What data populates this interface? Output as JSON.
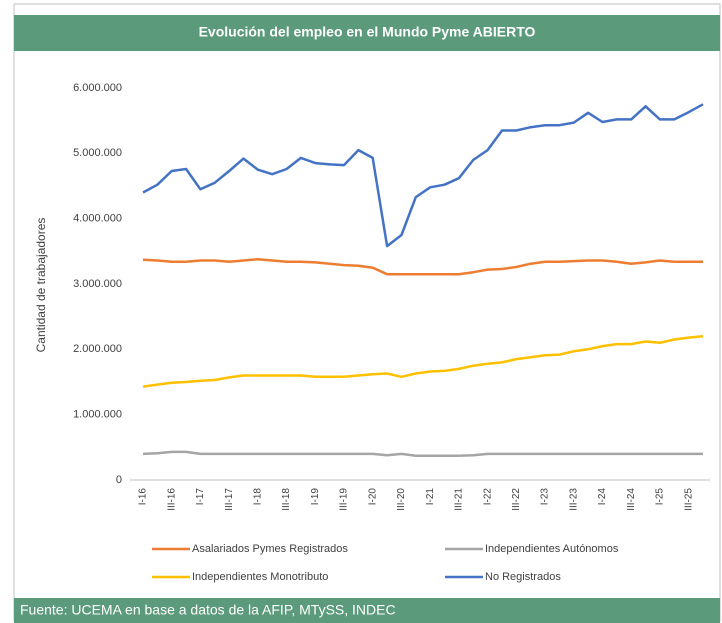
{
  "chart_data": {
    "type": "line",
    "title": "Evolución del empleo en el Mundo Pyme ABIERTO",
    "y_label": "Cantidad de trabajadores",
    "source": "Fuente: UCEMA en base a datos de la AFIP, MTySS, INDEC",
    "categories": [
      "I-16",
      null,
      "III-16",
      null,
      "I-17",
      null,
      "III-17",
      null,
      "I-18",
      null,
      "III-18",
      null,
      "I-19",
      null,
      "III-19",
      null,
      "I-20",
      null,
      "III-20",
      null,
      "I-21",
      null,
      "III-21",
      null,
      "I-22",
      null,
      "III-22",
      null,
      "I-23",
      null,
      "III-23",
      null,
      "I-24",
      null,
      "III-24",
      null,
      "I-25",
      null,
      "III-25",
      null
    ],
    "ylim": [
      0,
      6000000
    ],
    "yticks": [
      0,
      {
        "value": 1000000,
        "label": "1.000.000"
      },
      {
        "value": 2000000,
        "label": "2.000.000"
      },
      {
        "value": 3000000,
        "label": "3.000.000"
      },
      {
        "value": 4000000,
        "label": "4.000.000"
      },
      {
        "value": 5000000,
        "label": "5.000.000"
      },
      {
        "value": 6000000,
        "label": "6.000.000"
      }
    ],
    "grid": false,
    "series": [
      {
        "name": "Asalariados Pymes Registrados",
        "color": "#ed7d31",
        "values": [
          3370000,
          3360000,
          3340000,
          3340000,
          3360000,
          3360000,
          3340000,
          3360000,
          3380000,
          3360000,
          3340000,
          3340000,
          3330000,
          3310000,
          3290000,
          3280000,
          3250000,
          3150000,
          3150000,
          3150000,
          3150000,
          3150000,
          3150000,
          3180000,
          3220000,
          3230000,
          3260000,
          3310000,
          3340000,
          3340000,
          3350000,
          3360000,
          3360000,
          3340000,
          3310000,
          3330000,
          3360000,
          3340000,
          3340000,
          3340000
        ]
      },
      {
        "name": "Independientes Autónomos",
        "color": "#a5a5a5",
        "values": [
          400000,
          410000,
          430000,
          430000,
          400000,
          400000,
          400000,
          400000,
          400000,
          400000,
          400000,
          400000,
          400000,
          400000,
          400000,
          400000,
          400000,
          380000,
          400000,
          370000,
          370000,
          370000,
          370000,
          380000,
          400000,
          400000,
          400000,
          400000,
          400000,
          400000,
          400000,
          400000,
          400000,
          400000,
          400000,
          400000,
          400000,
          400000,
          400000,
          400000
        ]
      },
      {
        "name": "Independientes Monotributo",
        "color": "#ffc000",
        "values": [
          1430000,
          1460000,
          1490000,
          1500000,
          1520000,
          1530000,
          1570000,
          1600000,
          1600000,
          1600000,
          1600000,
          1600000,
          1580000,
          1580000,
          1580000,
          1600000,
          1620000,
          1630000,
          1580000,
          1630000,
          1660000,
          1670000,
          1700000,
          1750000,
          1780000,
          1800000,
          1850000,
          1880000,
          1910000,
          1920000,
          1970000,
          2000000,
          2050000,
          2080000,
          2080000,
          2120000,
          2100000,
          2150000,
          2180000,
          2200000
        ]
      },
      {
        "name": "No Registrados",
        "color": "#4472c4",
        "values": [
          4400000,
          4520000,
          4730000,
          4760000,
          4450000,
          4550000,
          4730000,
          4920000,
          4750000,
          4680000,
          4760000,
          4930000,
          4850000,
          4830000,
          4820000,
          5050000,
          4930000,
          3580000,
          3750000,
          4330000,
          4480000,
          4520000,
          4620000,
          4900000,
          5050000,
          5350000,
          5350000,
          5400000,
          5430000,
          5430000,
          5470000,
          5620000,
          5480000,
          5520000,
          5520000,
          5720000,
          5520000,
          5520000,
          5630000,
          5750000
        ]
      }
    ]
  }
}
